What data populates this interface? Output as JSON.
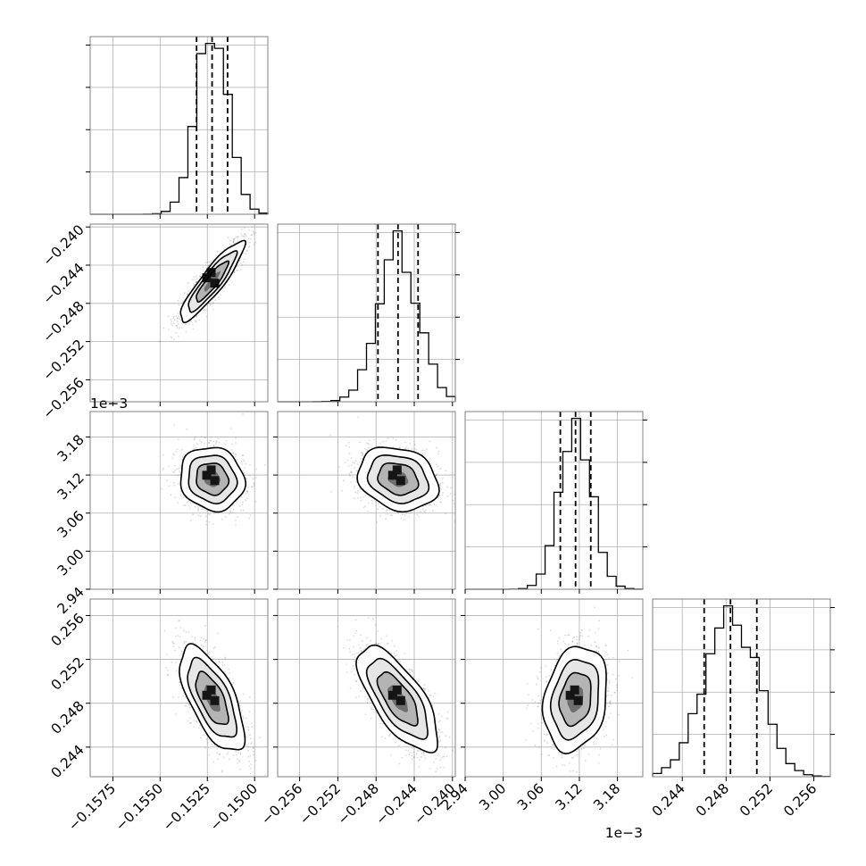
{
  "chart_data": {
    "type": "corner",
    "parameters": [
      {
        "index": 0,
        "mean": -0.15225,
        "std": 0.00085,
        "quantiles": [
          -0.15307,
          -0.15225,
          -0.15143
        ],
        "range": [
          -0.1587,
          -0.1493
        ],
        "ticks": [
          -0.1575,
          -0.155,
          -0.1525,
          -0.15
        ],
        "tick_labels": [
          "−0.1575",
          "−0.1550",
          "−0.1525",
          "−0.1500"
        ],
        "offset_text": ""
      },
      {
        "index": 1,
        "mean": -0.2457,
        "std": 0.0021,
        "quantiles": [
          -0.2478,
          -0.2457,
          -0.2436
        ],
        "range": [
          -0.2583,
          -0.2397
        ],
        "ticks": [
          -0.256,
          -0.252,
          -0.248,
          -0.244,
          -0.24
        ],
        "tick_labels": [
          "−0.256",
          "−0.252",
          "−0.248",
          "−0.244",
          "−0.240"
        ],
        "offset_text": ""
      },
      {
        "index": 2,
        "mean": 3.114,
        "std": 0.025,
        "quantiles": [
          3.09,
          3.114,
          3.138
        ],
        "range": [
          2.94,
          3.22
        ],
        "ticks": [
          2.94,
          3.0,
          3.06,
          3.12,
          3.18
        ],
        "tick_labels": [
          "2.94",
          "3.00",
          "3.06",
          "3.12",
          "3.18"
        ],
        "offset_text": "1e−3"
      },
      {
        "index": 3,
        "mean": 0.2484,
        "std": 0.0024,
        "quantiles": [
          0.246,
          0.2484,
          0.2508
        ],
        "range": [
          0.2413,
          0.2575
        ],
        "ticks": [
          0.244,
          0.248,
          0.252,
          0.256
        ],
        "tick_labels": [
          "0.244",
          "0.248",
          "0.252",
          "0.256"
        ],
        "offset_text": ""
      }
    ],
    "correlations": [
      [
        1.0,
        0.9,
        -0.1,
        -0.65
      ],
      [
        0.9,
        1.0,
        -0.2,
        -0.7
      ],
      [
        -0.1,
        -0.2,
        1.0,
        0.2
      ],
      [
        -0.65,
        -0.7,
        0.2,
        1.0
      ]
    ],
    "quantile_levels": [
      0.16,
      0.5,
      0.84
    ],
    "contour_sigma_levels": [
      0.5,
      1.0,
      1.5,
      2.0
    ],
    "grid": true,
    "histogram_bins": 20
  }
}
